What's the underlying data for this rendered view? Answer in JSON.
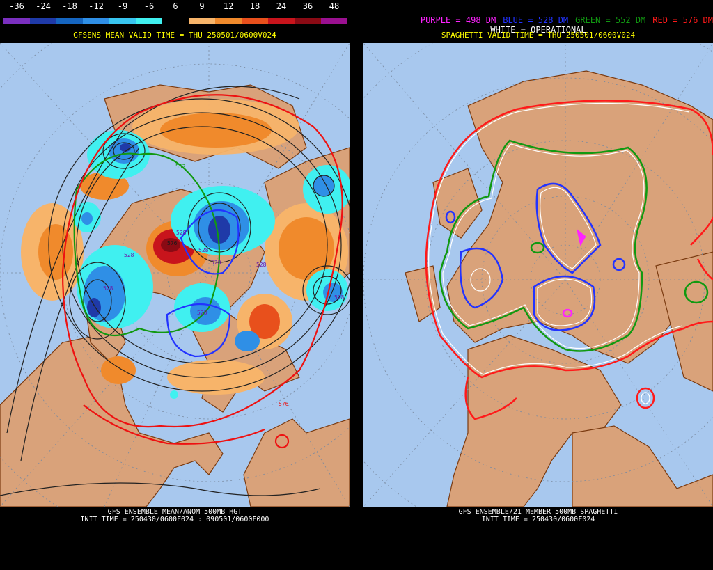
{
  "left": {
    "legend": {
      "ticks": [
        "-36",
        "-24",
        "-18",
        "-12",
        "-9",
        "-6",
        "6",
        "9",
        "12",
        "18",
        "24",
        "36",
        "48"
      ],
      "colors": [
        "#7a2fbf",
        "#1f3aa8",
        "#1565c0",
        "#2f8fe6",
        "#38c5f0",
        "#40f0f0",
        "#000000",
        "#f7b46a",
        "#f08a2c",
        "#e8501c",
        "#c8141c",
        "#8a0a14",
        "#9a1090"
      ]
    },
    "valid_time": "GFSENS MEAN VALID TIME = THU 250501/0600V024",
    "caption_line1": "GFS ENSEMBLE MEAN/ANOM 500MB HGT",
    "caption_line2": "INIT TIME = 250430/0600F024 : 090501/0600F000",
    "contour_labels": [
      "528",
      "528",
      "528",
      "528",
      "528",
      "528",
      "528",
      "528",
      "552",
      "576",
      "576"
    ]
  },
  "right": {
    "legend": [
      {
        "text": "PURPLE = 498 DM",
        "color": "#ff22ff"
      },
      {
        "text": "BLUE = 528 DM",
        "color": "#2233ff"
      },
      {
        "text": "GREEN = 552 DM",
        "color": "#119911"
      },
      {
        "text": "RED = 576 DM",
        "color": "#ff1a1a"
      }
    ],
    "white_line": "WHITE = OPERATIONAL",
    "valid_time": "SPAGHETTI VALID TIME = THU 250501/0600V024",
    "caption_line1": "GFS ENSEMBLE/21 MEMBER 500MB SPAGHETTI",
    "caption_line2": "INIT TIME = 250430/0600F024"
  },
  "colors": {
    "ocean": "#a8c8ee",
    "land": "#d9a27a",
    "coast": "#7a3a10",
    "grid": "#7a8aa0"
  }
}
